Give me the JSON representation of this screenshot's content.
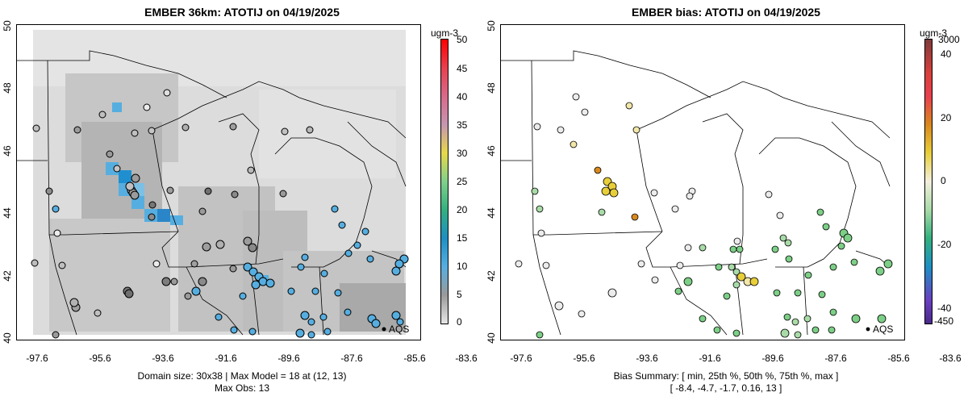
{
  "left_panel": {
    "title": "EMBER 36km: ATOTIJ on 04/19/2025",
    "y_ticks": [
      "40",
      "42",
      "44",
      "46",
      "48",
      "50"
    ],
    "x_ticks": [
      "-97.6",
      "-95.6",
      "-93.6",
      "-91.6",
      "-89.6",
      "-87.6",
      "-85.6",
      "-83.6"
    ],
    "footer_line1": "Domain size: 30x38 | Max Model = 18 at (12, 13)",
    "footer_line2": "Max Obs: 13",
    "colorbar_unit": "ugm-3",
    "colorbar_ticks": [
      "50",
      "45",
      "40",
      "35",
      "30",
      "25",
      "20",
      "15",
      "10",
      "5",
      "0"
    ],
    "aqs_label": "AQS"
  },
  "right_panel": {
    "title": "EMBER bias: ATOTIJ on 04/19/2025",
    "y_ticks": [
      "40",
      "42",
      "44",
      "46",
      "48",
      "50"
    ],
    "x_ticks": [
      "-97.6",
      "-95.6",
      "-93.6",
      "-91.6",
      "-89.6",
      "-87.6",
      "-85.6",
      "-83.6"
    ],
    "footer_line1": "Bias Summary: [ min, 25th %, 50th %, 75th %, max ]",
    "footer_line2": "[ -8.4,   -4.7,   -1.7,   0.16,   13 ]",
    "colorbar_unit": "ugm-3",
    "colorbar_ticks_right": [
      "3000",
      "40",
      "20",
      "0",
      "-20",
      "-40",
      "-450"
    ],
    "aqs_label": "AQS"
  },
  "colors": {
    "model_low": "#d9d9d9",
    "model_mid": "#a9a9a9",
    "model_blue": "#56aee0",
    "bias_green": "#7ccf86",
    "bias_white": "#ececec",
    "bias_yellow": "#e8cf3a",
    "bias_orange": "#d9891e"
  }
}
